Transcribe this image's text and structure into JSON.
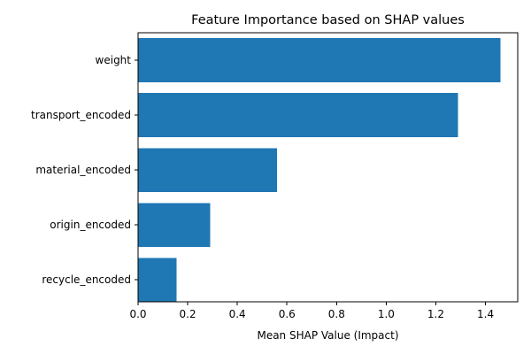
{
  "chart_data": {
    "type": "bar",
    "orientation": "horizontal",
    "title": "Feature Importance based on SHAP values",
    "xlabel": "Mean SHAP Value (Impact)",
    "ylabel": "",
    "categories": [
      "weight",
      "transport_encoded",
      "material_encoded",
      "origin_encoded",
      "recycle_encoded"
    ],
    "values": [
      1.46,
      1.29,
      0.56,
      0.29,
      0.155
    ],
    "xlim": [
      0,
      1.53
    ],
    "xticks": [
      0.0,
      0.2,
      0.4,
      0.6,
      0.8,
      1.0,
      1.2,
      1.4
    ],
    "xtick_labels": [
      "0.0",
      "0.2",
      "0.4",
      "0.6",
      "0.8",
      "1.0",
      "1.2",
      "1.4"
    ],
    "grid": false,
    "bar_color": "#1f77b4"
  }
}
